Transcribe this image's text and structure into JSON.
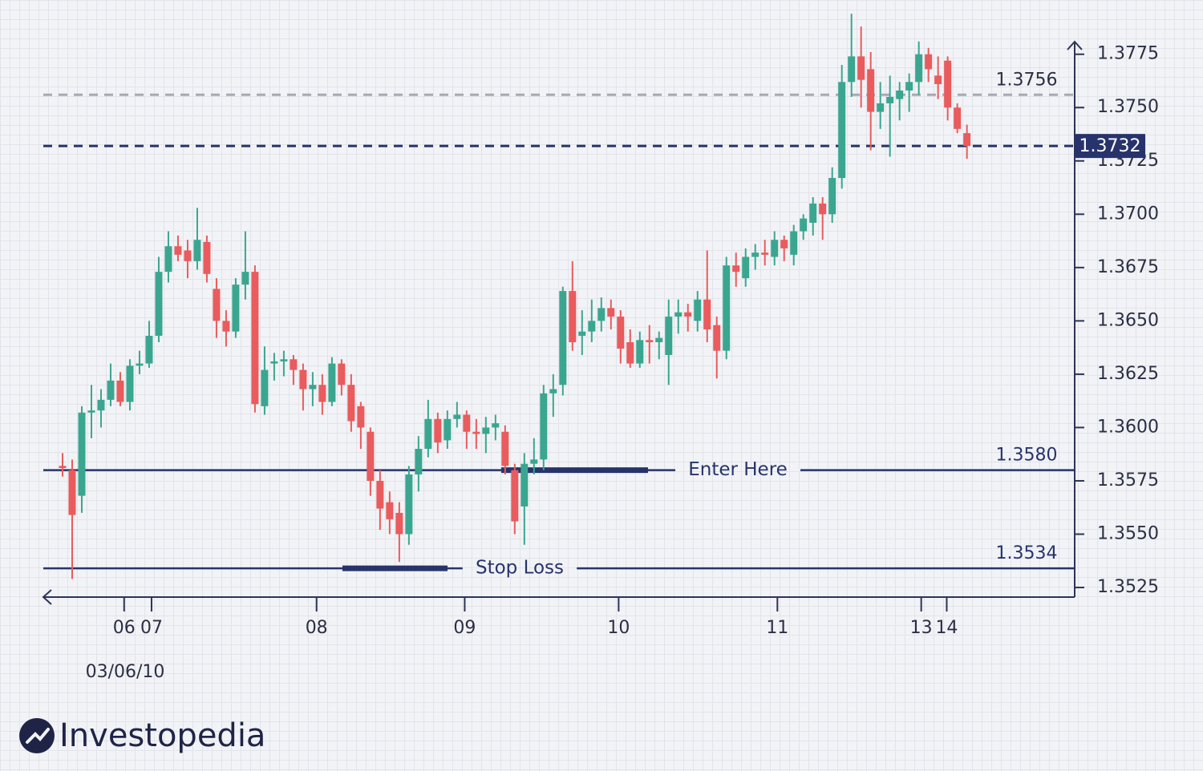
{
  "chart_data": {
    "type": "candlestick",
    "x_label": "03/06/10",
    "up_color": "#3aa690",
    "down_color": "#e95b5d",
    "x": [
      0,
      1,
      2,
      3,
      4,
      5,
      6,
      7,
      8,
      9,
      10,
      11,
      12,
      13,
      14,
      15,
      16,
      17,
      18,
      19,
      20,
      21,
      22,
      23,
      24,
      25,
      26,
      27,
      28,
      29,
      30,
      31,
      32,
      33,
      34,
      35,
      36,
      37,
      38,
      39,
      40,
      41,
      42,
      43,
      44,
      45,
      46,
      47,
      48,
      49,
      50,
      51,
      52,
      53,
      54,
      55,
      56,
      57,
      58,
      59,
      60,
      61,
      62,
      63,
      64,
      65,
      66,
      67,
      68,
      69,
      70,
      71,
      72,
      73,
      74,
      75,
      76,
      77,
      78,
      79,
      80,
      81,
      82,
      83,
      84,
      85,
      86,
      87,
      88,
      89,
      90,
      91,
      92,
      93,
      94
    ],
    "open": [
      1.3582,
      1.358,
      1.3568,
      1.3607,
      1.3608,
      1.3613,
      1.3622,
      1.3612,
      1.3629,
      1.363,
      1.3643,
      1.3673,
      1.3685,
      1.3683,
      1.3678,
      1.3687,
      1.3665,
      1.365,
      1.3645,
      1.3667,
      1.3673,
      1.361,
      1.363,
      1.3631,
      1.3632,
      1.3627,
      1.3618,
      1.362,
      1.3612,
      1.363,
      1.362,
      1.361,
      1.3598,
      1.3575,
      1.3565,
      1.356,
      1.355,
      1.3578,
      1.359,
      1.3604,
      1.3594,
      1.3604,
      1.3606,
      1.3598,
      1.3597,
      1.36,
      1.3598,
      1.358,
      1.3563,
      1.3583,
      1.3585,
      1.3616,
      1.362,
      1.3664,
      1.3643,
      1.3645,
      1.365,
      1.3656,
      1.3652,
      1.364,
      1.363,
      1.3641,
      1.364,
      1.3634,
      1.3652,
      1.3654,
      1.365,
      1.366,
      1.3648,
      1.3636,
      1.3676,
      1.367,
      1.368,
      1.3682,
      1.368,
      1.3688,
      1.3681,
      1.3692,
      1.3696,
      1.3705,
      1.37,
      1.3717,
      1.3762,
      1.3774,
      1.3768,
      1.3748,
      1.3752,
      1.3754,
      1.3758,
      1.3762,
      1.3775,
      1.3765,
      1.3772,
      1.375,
      1.3738
    ],
    "high": [
      1.3588,
      1.3585,
      1.361,
      1.362,
      1.3618,
      1.363,
      1.3626,
      1.3632,
      1.3636,
      1.365,
      1.368,
      1.3692,
      1.369,
      1.3688,
      1.3703,
      1.369,
      1.367,
      1.3655,
      1.367,
      1.3692,
      1.3676,
      1.3638,
      1.3635,
      1.3636,
      1.3634,
      1.363,
      1.3626,
      1.3625,
      1.3633,
      1.3632,
      1.3625,
      1.3612,
      1.36,
      1.358,
      1.357,
      1.3565,
      1.3582,
      1.3596,
      1.3613,
      1.3607,
      1.3608,
      1.3612,
      1.3608,
      1.3604,
      1.3605,
      1.3606,
      1.3601,
      1.3583,
      1.3588,
      1.3595,
      1.362,
      1.3625,
      1.3666,
      1.3678,
      1.3655,
      1.366,
      1.3661,
      1.366,
      1.3655,
      1.3646,
      1.3645,
      1.3648,
      1.3645,
      1.366,
      1.366,
      1.3658,
      1.3664,
      1.3683,
      1.3652,
      1.368,
      1.3682,
      1.3684,
      1.3686,
      1.3688,
      1.3692,
      1.369,
      1.3695,
      1.37,
      1.3708,
      1.3708,
      1.3722,
      1.377,
      1.3794,
      1.3788,
      1.3776,
      1.3762,
      1.3765,
      1.3762,
      1.3766,
      1.3781,
      1.3778,
      1.3774,
      1.3774,
      1.3752,
      1.3742
    ],
    "low": [
      1.3577,
      1.3529,
      1.356,
      1.3595,
      1.36,
      1.361,
      1.361,
      1.3608,
      1.3625,
      1.3628,
      1.364,
      1.3668,
      1.3678,
      1.367,
      1.3674,
      1.3668,
      1.3642,
      1.3638,
      1.3642,
      1.366,
      1.3607,
      1.3606,
      1.3622,
      1.3624,
      1.362,
      1.3608,
      1.361,
      1.3606,
      1.361,
      1.3615,
      1.3598,
      1.359,
      1.3568,
      1.3552,
      1.355,
      1.3537,
      1.3545,
      1.357,
      1.3586,
      1.3588,
      1.359,
      1.36,
      1.359,
      1.359,
      1.3588,
      1.3594,
      1.3578,
      1.355,
      1.3545,
      1.3578,
      1.358,
      1.3605,
      1.3615,
      1.3636,
      1.3634,
      1.364,
      1.3645,
      1.3646,
      1.363,
      1.3628,
      1.3628,
      1.363,
      1.3632,
      1.362,
      1.3644,
      1.3645,
      1.3645,
      1.364,
      1.3623,
      1.3632,
      1.3666,
      1.3666,
      1.3674,
      1.3676,
      1.3676,
      1.3678,
      1.3676,
      1.3688,
      1.369,
      1.3688,
      1.3696,
      1.3712,
      1.3755,
      1.375,
      1.373,
      1.374,
      1.3727,
      1.3744,
      1.3748,
      1.3756,
      1.3762,
      1.3754,
      1.3744,
      1.3738,
      1.3726
    ],
    "close": [
      1.3581,
      1.3559,
      1.3607,
      1.3608,
      1.3613,
      1.3622,
      1.3612,
      1.3629,
      1.363,
      1.3643,
      1.3673,
      1.3685,
      1.3681,
      1.3678,
      1.3688,
      1.3672,
      1.365,
      1.3645,
      1.3667,
      1.3673,
      1.3611,
      1.3627,
      1.3631,
      1.3632,
      1.3627,
      1.3618,
      1.362,
      1.3612,
      1.363,
      1.362,
      1.3603,
      1.36,
      1.3575,
      1.3562,
      1.3557,
      1.355,
      1.3578,
      1.359,
      1.3604,
      1.3593,
      1.3604,
      1.3606,
      1.3598,
      1.3597,
      1.36,
      1.3602,
      1.3582,
      1.3556,
      1.3583,
      1.3585,
      1.3616,
      1.3618,
      1.3664,
      1.364,
      1.3645,
      1.365,
      1.3656,
      1.3652,
      1.3637,
      1.363,
      1.3641,
      1.364,
      1.3642,
      1.3652,
      1.3654,
      1.3652,
      1.366,
      1.3646,
      1.3636,
      1.3676,
      1.3673,
      1.368,
      1.3682,
      1.3681,
      1.3688,
      1.3684,
      1.3692,
      1.3698,
      1.3705,
      1.37,
      1.3717,
      1.3762,
      1.3774,
      1.3763,
      1.3748,
      1.3752,
      1.3755,
      1.3758,
      1.3762,
      1.3775,
      1.3768,
      1.3761,
      1.375,
      1.374,
      1.3732
    ],
    "xlim": [
      -2,
      105.2
    ],
    "xticks": [
      {
        "value": 6.4,
        "label": "06"
      },
      {
        "value": 9.25,
        "label": "07"
      },
      {
        "value": 26.4,
        "label": "08"
      },
      {
        "value": 41.8,
        "label": "09"
      },
      {
        "value": 57.8,
        "label": "10"
      },
      {
        "value": 74.3,
        "label": "11"
      },
      {
        "value": 89.25,
        "label": "13"
      },
      {
        "value": 91.9,
        "label": "14"
      }
    ],
    "ylim": [
      1.35205,
      1.37809
    ],
    "yticks": [
      1.3525,
      {
        "value": 1.355,
        "label": "1.3550"
      },
      1.3575,
      {
        "value": 1.36,
        "label": "1.3600"
      },
      1.3625,
      {
        "value": 1.365,
        "label": "1.3650"
      },
      1.3675,
      {
        "value": 1.37,
        "label": "1.3700"
      },
      1.3725,
      {
        "value": 1.375,
        "label": "1.3750"
      },
      1.3775
    ],
    "reference_lines": [
      {
        "value": 1.3756,
        "color": "#a7a9b2",
        "dashed": true
      },
      {
        "value": 1.3732,
        "color": "#27336b",
        "dashed": true,
        "boxed": true
      },
      {
        "value": {
          "value": 1.358,
          "label": "1.3580"
        },
        "color": "#27336b",
        "dashed": false,
        "note": "Enter Here"
      },
      {
        "value": 1.3534,
        "color": "#27336b",
        "dashed": false,
        "note": "Stop Loss"
      }
    ]
  },
  "brand": "Investopedia"
}
